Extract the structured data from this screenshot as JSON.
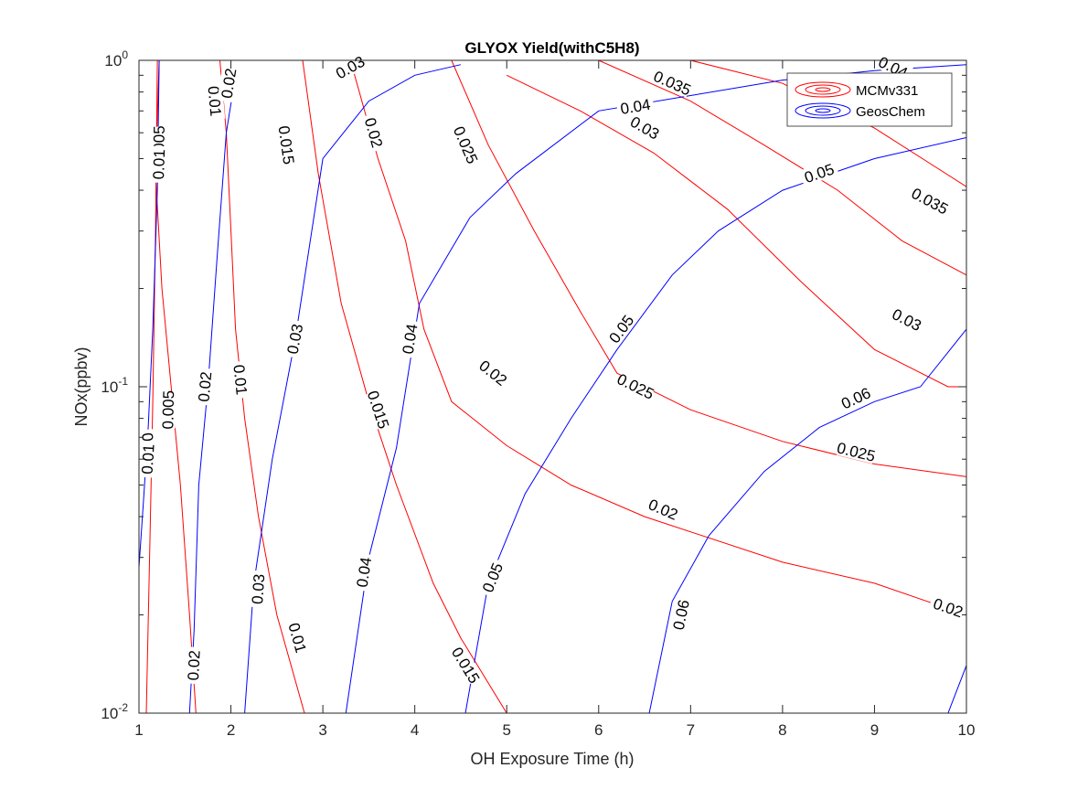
{
  "chart_data": {
    "type": "contour",
    "title": "GLYOX Yield(withC5H8)",
    "xlabel": "OH Exposure Time (h)",
    "ylabel": "NOx(ppbv)",
    "xlim": [
      1,
      10
    ],
    "ylim": [
      0.01,
      1
    ],
    "yscale": "log",
    "x_ticks": [
      1,
      2,
      3,
      4,
      5,
      6,
      7,
      8,
      9,
      10
    ],
    "y_ticks": [
      {
        "value": 0.01,
        "base": "10",
        "exp": "-2"
      },
      {
        "value": 0.1,
        "base": "10",
        "exp": "-1"
      },
      {
        "value": 1,
        "base": "10",
        "exp": "0"
      }
    ],
    "legend": {
      "position": "top-right",
      "entries": [
        {
          "name": "MCMv331",
          "color": "#ff0000"
        },
        {
          "name": "GeosChem",
          "color": "#0000ff"
        }
      ]
    },
    "series": [
      {
        "name": "MCMv331",
        "color": "#ff0000",
        "contours": [
          {
            "level": 0.005,
            "label": "0.005",
            "points": [
              [
                1.08,
                0.01
              ],
              [
                1.12,
                0.035
              ],
              [
                1.15,
                0.09
              ],
              [
                1.18,
                0.3
              ],
              [
                1.2,
                1.0
              ]
            ],
            "label_pts": [
              [
                1.22,
                0.55
              ],
              [
                1.32,
                0.085
              ]
            ]
          },
          {
            "level": 0.01,
            "label": "0.01",
            "points": [
              [
                1.62,
                0.01
              ],
              [
                1.55,
                0.02
              ],
              [
                1.45,
                0.05
              ],
              [
                1.35,
                0.1
              ],
              [
                1.25,
                0.2
              ],
              [
                1.18,
                0.45
              ],
              [
                1.22,
                1.0
              ]
            ],
            "label_pts": [
              [
                1.22,
                0.48
              ],
              [
                1.1,
                0.065
              ]
            ]
          },
          {
            "level": 0.01,
            "label": "0.01",
            "points": [
              [
                1.88,
                1.0
              ],
              [
                1.95,
                0.6
              ],
              [
                2.0,
                0.3
              ],
              [
                2.05,
                0.15
              ],
              [
                2.15,
                0.08
              ],
              [
                2.3,
                0.04
              ],
              [
                2.5,
                0.02
              ],
              [
                2.8,
                0.01
              ]
            ],
            "label_pts": [
              [
                1.82,
                0.75
              ],
              [
                2.1,
                0.105
              ],
              [
                2.72,
                0.017
              ]
            ]
          },
          {
            "level": 0.015,
            "label": "0.015",
            "points": [
              [
                2.78,
                1.0
              ],
              [
                2.95,
                0.45
              ],
              [
                3.2,
                0.18
              ],
              [
                3.5,
                0.09
              ],
              [
                3.8,
                0.05
              ],
              [
                4.2,
                0.025
              ],
              [
                4.5,
                0.017
              ],
              [
                5.0,
                0.01
              ]
            ],
            "label_pts": [
              [
                2.6,
                0.55
              ],
              [
                3.6,
                0.085
              ],
              [
                4.55,
                0.014
              ]
            ]
          },
          {
            "level": 0.02,
            "label": "0.02",
            "points": [
              [
                3.3,
                1.0
              ],
              [
                3.6,
                0.5
              ],
              [
                3.9,
                0.28
              ],
              [
                4.1,
                0.15
              ],
              [
                4.4,
                0.09
              ],
              [
                5.0,
                0.066
              ],
              [
                5.7,
                0.05
              ],
              [
                6.5,
                0.04
              ],
              [
                8.0,
                0.029
              ],
              [
                9.0,
                0.025
              ],
              [
                10.0,
                0.02
              ]
            ],
            "label_pts": [
              [
                3.55,
                0.6
              ],
              [
                4.85,
                0.11
              ],
              [
                6.7,
                0.042
              ],
              [
                9.8,
                0.021
              ]
            ]
          },
          {
            "level": 0.025,
            "label": "0.025",
            "points": [
              [
                4.4,
                1.0
              ],
              [
                4.8,
                0.55
              ],
              [
                5.3,
                0.3
              ],
              [
                5.8,
                0.17
              ],
              [
                6.2,
                0.11
              ],
              [
                7.0,
                0.085
              ],
              [
                8.0,
                0.068
              ],
              [
                9.0,
                0.058
              ],
              [
                10.0,
                0.053
              ]
            ],
            "label_pts": [
              [
                4.55,
                0.55
              ],
              [
                6.4,
                0.1
              ],
              [
                8.8,
                0.063
              ]
            ]
          },
          {
            "level": 0.03,
            "label": "0.03",
            "points": [
              [
                5.0,
                0.9
              ],
              [
                5.8,
                0.7
              ],
              [
                6.6,
                0.52
              ],
              [
                7.4,
                0.35
              ],
              [
                8.2,
                0.21
              ],
              [
                9.0,
                0.13
              ],
              [
                9.8,
                0.1
              ],
              [
                10.0,
                0.1
              ]
            ],
            "label_pts": [
              [
                6.5,
                0.62
              ],
              [
                9.35,
                0.16
              ]
            ]
          },
          {
            "level": 0.035,
            "label": "0.035",
            "points": [
              [
                6.0,
                1.0
              ],
              [
                7.0,
                0.75
              ],
              [
                7.8,
                0.55
              ],
              [
                8.6,
                0.4
              ],
              [
                9.3,
                0.28
              ],
              [
                10.0,
                0.22
              ]
            ],
            "label_pts": [
              [
                6.8,
                0.85
              ],
              [
                9.6,
                0.37
              ]
            ]
          },
          {
            "level": 0.04,
            "label": "0.04",
            "points": [
              [
                7.0,
                1.0
              ],
              [
                8.0,
                0.85
              ],
              [
                9.0,
                0.62
              ],
              [
                10.0,
                0.41
              ]
            ],
            "label_pts": [
              [
                8.5,
                0.72
              ],
              [
                9.2,
                0.95
              ]
            ]
          }
        ]
      },
      {
        "name": "GeosChem",
        "color": "#0000ff",
        "contours": [
          {
            "level": 0.01,
            "label": "0.01",
            "points": [
              [
                1.0,
                0.028
              ],
              [
                1.05,
                0.045
              ],
              [
                1.1,
                0.075
              ],
              [
                1.15,
                0.15
              ],
              [
                1.2,
                0.4
              ],
              [
                1.22,
                1.0
              ]
            ],
            "label_pts": [
              [
                1.1,
                0.06
              ]
            ]
          },
          {
            "level": 0.02,
            "label": "0.02",
            "points": [
              [
                1.55,
                0.01
              ],
              [
                1.6,
                0.018
              ],
              [
                1.65,
                0.05
              ],
              [
                1.75,
                0.1
              ],
              [
                1.85,
                0.25
              ],
              [
                1.95,
                0.6
              ],
              [
                2.05,
                0.9
              ]
            ],
            "label_pts": [
              [
                1.6,
                0.014
              ],
              [
                1.72,
                0.1
              ],
              [
                1.98,
                0.85
              ]
            ]
          },
          {
            "level": 0.03,
            "label": "0.03",
            "points": [
              [
                2.15,
                0.01
              ],
              [
                2.25,
                0.025
              ],
              [
                2.45,
                0.06
              ],
              [
                2.7,
                0.14
              ],
              [
                3.0,
                0.5
              ],
              [
                3.5,
                0.75
              ],
              [
                4.0,
                0.9
              ],
              [
                4.5,
                0.97
              ]
            ],
            "label_pts": [
              [
                2.3,
                0.024
              ],
              [
                2.7,
                0.14
              ],
              [
                3.3,
                0.95
              ]
            ]
          },
          {
            "level": 0.04,
            "label": "0.04",
            "points": [
              [
                3.25,
                0.01
              ],
              [
                3.5,
                0.03
              ],
              [
                3.8,
                0.065
              ],
              [
                4.05,
                0.18
              ],
              [
                4.6,
                0.33
              ],
              [
                5.1,
                0.45
              ],
              [
                6.0,
                0.7
              ],
              [
                7.0,
                0.78
              ],
              [
                8.0,
                0.87
              ],
              [
                9.0,
                0.93
              ],
              [
                10.0,
                0.97
              ]
            ],
            "label_pts": [
              [
                3.45,
                0.027
              ],
              [
                3.95,
                0.14
              ],
              [
                6.4,
                0.72
              ]
            ]
          },
          {
            "level": 0.05,
            "label": "0.05",
            "points": [
              [
                4.55,
                0.01
              ],
              [
                4.8,
                0.025
              ],
              [
                5.2,
                0.047
              ],
              [
                5.7,
                0.08
              ],
              [
                6.2,
                0.13
              ],
              [
                6.8,
                0.22
              ],
              [
                7.3,
                0.3
              ],
              [
                8.0,
                0.4
              ],
              [
                9.0,
                0.5
              ],
              [
                10.0,
                0.58
              ]
            ],
            "label_pts": [
              [
                4.85,
                0.026
              ],
              [
                6.25,
                0.15
              ],
              [
                8.4,
                0.45
              ]
            ]
          },
          {
            "level": 0.06,
            "label": "0.06",
            "points": [
              [
                6.55,
                0.01
              ],
              [
                6.8,
                0.022
              ],
              [
                7.2,
                0.035
              ],
              [
                7.8,
                0.055
              ],
              [
                8.4,
                0.075
              ],
              [
                9.0,
                0.09
              ],
              [
                9.5,
                0.1
              ],
              [
                10.0,
                0.15
              ]
            ],
            "label_pts": [
              [
                6.9,
                0.02
              ],
              [
                8.8,
                0.092
              ]
            ]
          },
          {
            "level": 0.06,
            "label": "",
            "points": [
              [
                9.8,
                0.01
              ],
              [
                10.0,
                0.014
              ]
            ],
            "label_pts": []
          }
        ]
      }
    ]
  }
}
